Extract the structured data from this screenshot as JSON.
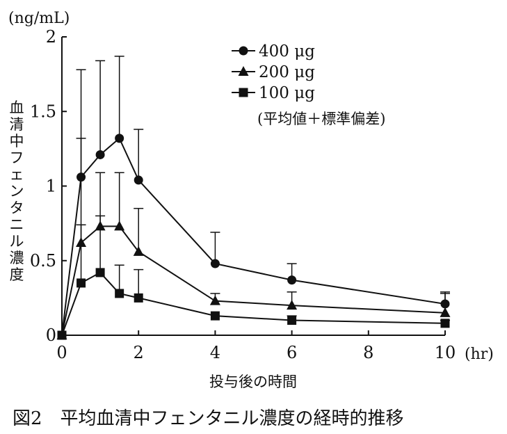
{
  "caption": "図2　平均血清中フェンタニル濃度の経時的推移",
  "chart_data": {
    "type": "line",
    "y_unit": "(ng/mL)",
    "x_unit": "(hr)",
    "xlabel": "投与後の時間",
    "ylabel": "血清中フェンタニル濃度",
    "xlim": [
      0,
      10
    ],
    "ylim": [
      0,
      2
    ],
    "x_ticks": [
      0,
      2,
      4,
      6,
      8,
      10
    ],
    "y_ticks": [
      0,
      0.5,
      1,
      1.5,
      2
    ],
    "y_tick_labels": [
      "0",
      "0.5",
      "1",
      "1.5",
      "2"
    ],
    "grid": false,
    "legend_position": "top-right",
    "legend_note": "(平均値＋標準偏差)",
    "x": [
      0,
      0.5,
      1,
      1.5,
      2,
      4,
      6,
      10
    ],
    "series": [
      {
        "name": "400 μg",
        "marker": "circle",
        "values": [
          0,
          1.06,
          1.21,
          1.32,
          1.04,
          0.48,
          0.37,
          0.21
        ],
        "upper": [
          0,
          1.78,
          1.84,
          1.87,
          1.38,
          0.69,
          0.48,
          0.29
        ]
      },
      {
        "name": "200 μg",
        "marker": "triangle",
        "values": [
          0,
          0.62,
          0.73,
          0.73,
          0.56,
          0.23,
          0.2,
          0.15
        ],
        "upper": [
          0,
          1.32,
          1.09,
          1.09,
          0.85,
          0.28,
          0.29,
          0.28
        ]
      },
      {
        "name": "100 μg",
        "marker": "square",
        "values": [
          0,
          0.35,
          0.42,
          0.28,
          0.25,
          0.13,
          0.1,
          0.08
        ],
        "upper": [
          0,
          0.74,
          0.8,
          0.47,
          0.44,
          0.13,
          0.13,
          0.1
        ]
      }
    ]
  }
}
